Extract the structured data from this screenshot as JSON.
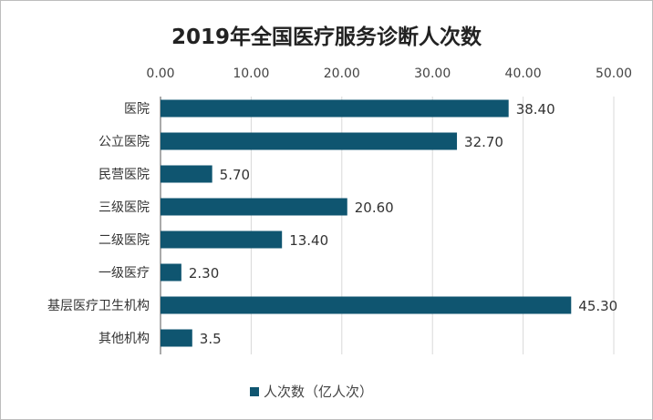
{
  "chart_data": {
    "type": "bar",
    "orientation": "horizontal",
    "title": "2019年全国医疗服务诊断人次数",
    "categories": [
      "医院",
      "公立医院",
      "民营医院",
      "三级医院",
      "二级医院",
      "一级医疗",
      "基层医疗卫生机构",
      "其他机构"
    ],
    "series": [
      {
        "name": "人次数（亿人次）",
        "values": [
          38.4,
          32.7,
          5.7,
          20.6,
          13.4,
          2.3,
          45.3,
          3.5
        ],
        "labels": [
          "38.40",
          "32.70",
          "5.70",
          "20.60",
          "13.40",
          "2.30",
          "45.30",
          "3.5"
        ],
        "color": "#0f5570"
      }
    ],
    "xlim": [
      0,
      50
    ],
    "xticks": [
      "0.00",
      "10.00",
      "20.00",
      "30.00",
      "40.00",
      "50.00"
    ],
    "xaxis_position": "top",
    "grid": true,
    "legend_position": "bottom"
  }
}
